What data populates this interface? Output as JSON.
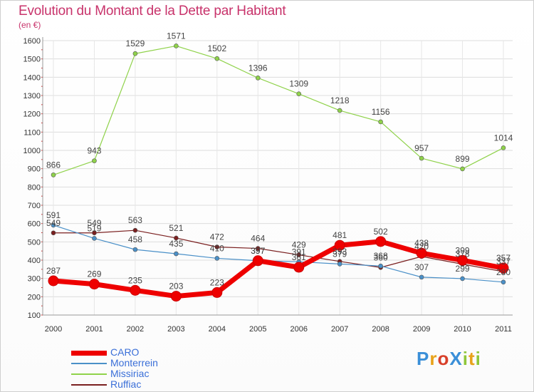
{
  "header": {
    "title": "Evolution du Montant de la Dette par Habitant",
    "subtitle": "(en €)"
  },
  "logo": {
    "text": "ProXiti"
  },
  "chart_data": {
    "type": "line",
    "title": "Evolution du Montant de la Dette par Habitant",
    "subtitle": "(en €)",
    "xlabel": "",
    "ylabel": "",
    "x": [
      "2000",
      "2001",
      "2002",
      "2003",
      "2004",
      "2005",
      "2006",
      "2007",
      "2008",
      "2009",
      "2010",
      "2011"
    ],
    "ylim": [
      100,
      1600
    ],
    "yticks": [
      100,
      200,
      300,
      400,
      500,
      600,
      700,
      800,
      900,
      1000,
      1100,
      1200,
      1300,
      1400,
      1500,
      1600
    ],
    "grid": true,
    "legend_position": "bottom-left",
    "series": [
      {
        "name": "CARO",
        "color": "#ee0000",
        "width": 7,
        "values": [
          287,
          269,
          235,
          203,
          223,
          397,
          361,
          481,
          502,
          438,
          399,
          357
        ]
      },
      {
        "name": "Monterrein",
        "color": "#4a90c8",
        "width": 1.2,
        "values": [
          591,
          519,
          458,
          435,
          410,
          397,
          391,
          379,
          368,
          307,
          299,
          280
        ]
      },
      {
        "name": "Missiriac",
        "color": "#8fd24a",
        "width": 1.2,
        "values": [
          866,
          943,
          1529,
          1571,
          1502,
          1396,
          1309,
          1218,
          1156,
          957,
          899,
          1014
        ]
      },
      {
        "name": "Ruffiac",
        "color": "#7a1f1f",
        "width": 1.2,
        "values": [
          549,
          549,
          563,
          521,
          472,
          464,
          429,
          393,
          360,
          420,
          378,
          337
        ]
      }
    ]
  }
}
